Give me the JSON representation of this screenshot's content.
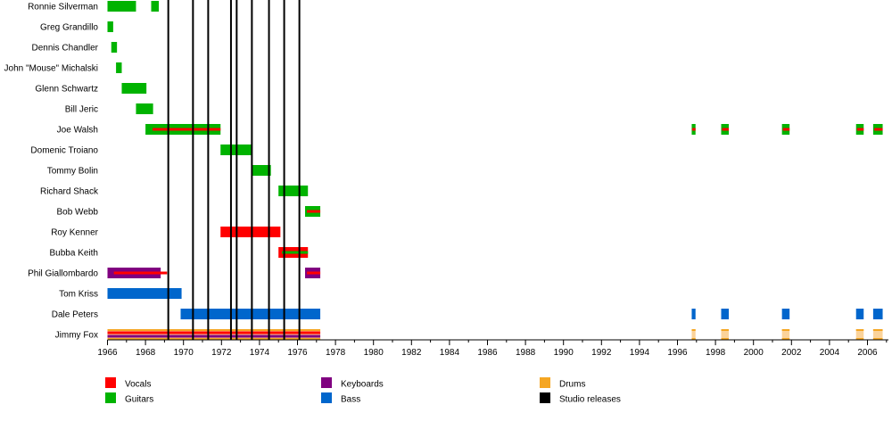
{
  "chart_data": {
    "type": "timeline",
    "title": "",
    "x_range": [
      1966,
      2006.8
    ],
    "x_ticks": [
      "1966",
      "1968",
      "1970",
      "1972",
      "1974",
      "1976",
      "1978",
      "1980",
      "1982",
      "1984",
      "1986",
      "1988",
      "1990",
      "1992",
      "1994",
      "1996",
      "1998",
      "2000",
      "2002",
      "2004",
      "2006"
    ],
    "colors": {
      "vocals": "#ff0000",
      "guitars": "#00b300",
      "keyboards": "#800080",
      "bass": "#0066cc",
      "drums": "#f5a623",
      "studio": "#000000",
      "drums_fill": "#fbd39a"
    },
    "members": [
      {
        "name": "Ronnie Silverman",
        "segments": [
          {
            "start": 1966.0,
            "end": 1967.5,
            "roles": [
              "guitars"
            ]
          },
          {
            "start": 1968.3,
            "end": 1968.7,
            "roles": [
              "guitars"
            ]
          }
        ]
      },
      {
        "name": "Greg Grandillo",
        "segments": [
          {
            "start": 1966.0,
            "end": 1966.3,
            "roles": [
              "guitars"
            ]
          }
        ]
      },
      {
        "name": "Dennis Chandler",
        "segments": [
          {
            "start": 1966.2,
            "end": 1966.5,
            "roles": [
              "guitars"
            ]
          }
        ]
      },
      {
        "name": "John \"Mouse\" Michalski",
        "segments": [
          {
            "start": 1966.45,
            "end": 1966.75,
            "roles": [
              "guitars"
            ]
          }
        ]
      },
      {
        "name": "Glenn Schwartz",
        "segments": [
          {
            "start": 1966.75,
            "end": 1968.05,
            "roles": [
              "guitars"
            ]
          }
        ]
      },
      {
        "name": "Bill Jeric",
        "segments": [
          {
            "start": 1967.5,
            "end": 1968.4,
            "roles": [
              "guitars"
            ]
          }
        ]
      },
      {
        "name": "Joe Walsh",
        "segments": [
          {
            "start": 1968.0,
            "end": 1971.95,
            "roles": [
              "guitars",
              "vocals"
            ]
          },
          {
            "start": 1996.75,
            "end": 1996.95,
            "roles": [
              "guitars",
              "vocals"
            ]
          },
          {
            "start": 1998.3,
            "end": 1998.7,
            "roles": [
              "guitars",
              "vocals"
            ]
          },
          {
            "start": 2001.5,
            "end": 2001.9,
            "roles": [
              "guitars",
              "vocals"
            ]
          },
          {
            "start": 2005.4,
            "end": 2005.8,
            "roles": [
              "guitars",
              "vocals"
            ]
          },
          {
            "start": 2006.3,
            "end": 2006.8,
            "roles": [
              "guitars",
              "vocals"
            ]
          }
        ]
      },
      {
        "name": "Domenic Troiano",
        "segments": [
          {
            "start": 1971.95,
            "end": 1973.6,
            "roles": [
              "guitars"
            ]
          }
        ]
      },
      {
        "name": "Tommy Bolin",
        "segments": [
          {
            "start": 1973.6,
            "end": 1974.6,
            "roles": [
              "guitars"
            ]
          }
        ]
      },
      {
        "name": "Richard Shack",
        "segments": [
          {
            "start": 1975.0,
            "end": 1976.55,
            "roles": [
              "guitars"
            ]
          }
        ]
      },
      {
        "name": "Bob Webb",
        "segments": [
          {
            "start": 1976.4,
            "end": 1977.2,
            "roles": [
              "guitars",
              "vocals"
            ]
          }
        ]
      },
      {
        "name": "Roy Kenner",
        "segments": [
          {
            "start": 1971.95,
            "end": 1975.1,
            "roles": [
              "vocals"
            ]
          }
        ]
      },
      {
        "name": "Bubba Keith",
        "segments": [
          {
            "start": 1975.0,
            "end": 1976.55,
            "roles": [
              "vocals",
              "guitars"
            ]
          }
        ]
      },
      {
        "name": "Phil Giallombardo",
        "segments": [
          {
            "start": 1966.0,
            "end": 1968.8,
            "roles": [
              "keyboards",
              "vocals"
            ]
          },
          {
            "start": 1976.4,
            "end": 1977.2,
            "roles": [
              "keyboards",
              "vocals"
            ]
          }
        ]
      },
      {
        "name": "Tom Kriss",
        "segments": [
          {
            "start": 1966.0,
            "end": 1969.9,
            "roles": [
              "bass"
            ]
          }
        ]
      },
      {
        "name": "Dale Peters",
        "segments": [
          {
            "start": 1969.85,
            "end": 1977.2,
            "roles": [
              "bass"
            ]
          },
          {
            "start": 1996.75,
            "end": 1996.95,
            "roles": [
              "bass"
            ]
          },
          {
            "start": 1998.3,
            "end": 1998.7,
            "roles": [
              "bass"
            ]
          },
          {
            "start": 2001.5,
            "end": 2001.9,
            "roles": [
              "bass"
            ]
          },
          {
            "start": 2005.4,
            "end": 2005.8,
            "roles": [
              "bass"
            ]
          },
          {
            "start": 2006.3,
            "end": 2006.8,
            "roles": [
              "bass"
            ]
          }
        ]
      },
      {
        "name": "Jimmy Fox",
        "segments": [
          {
            "start": 1966.0,
            "end": 1977.2,
            "roles": [
              "drums",
              "vocals",
              "keyboards"
            ]
          },
          {
            "start": 1996.75,
            "end": 1996.95,
            "roles": [
              "drums"
            ]
          },
          {
            "start": 1998.3,
            "end": 1998.7,
            "roles": [
              "drums"
            ]
          },
          {
            "start": 2001.5,
            "end": 2001.9,
            "roles": [
              "drums"
            ]
          },
          {
            "start": 2005.4,
            "end": 2005.8,
            "roles": [
              "drums"
            ]
          },
          {
            "start": 2006.3,
            "end": 2006.8,
            "roles": [
              "drums"
            ]
          }
        ]
      }
    ],
    "studio_releases": [
      1969.2,
      1970.5,
      1971.3,
      1972.5,
      1972.8,
      1973.6,
      1974.5,
      1975.3,
      1976.1
    ],
    "legend": [
      {
        "label": "Vocals",
        "role": "vocals"
      },
      {
        "label": "Guitars",
        "role": "guitars"
      },
      {
        "label": "Keyboards",
        "role": "keyboards"
      },
      {
        "label": "Bass",
        "role": "bass"
      },
      {
        "label": "Drums",
        "role": "drums"
      },
      {
        "label": "Studio releases",
        "role": "studio"
      }
    ]
  }
}
